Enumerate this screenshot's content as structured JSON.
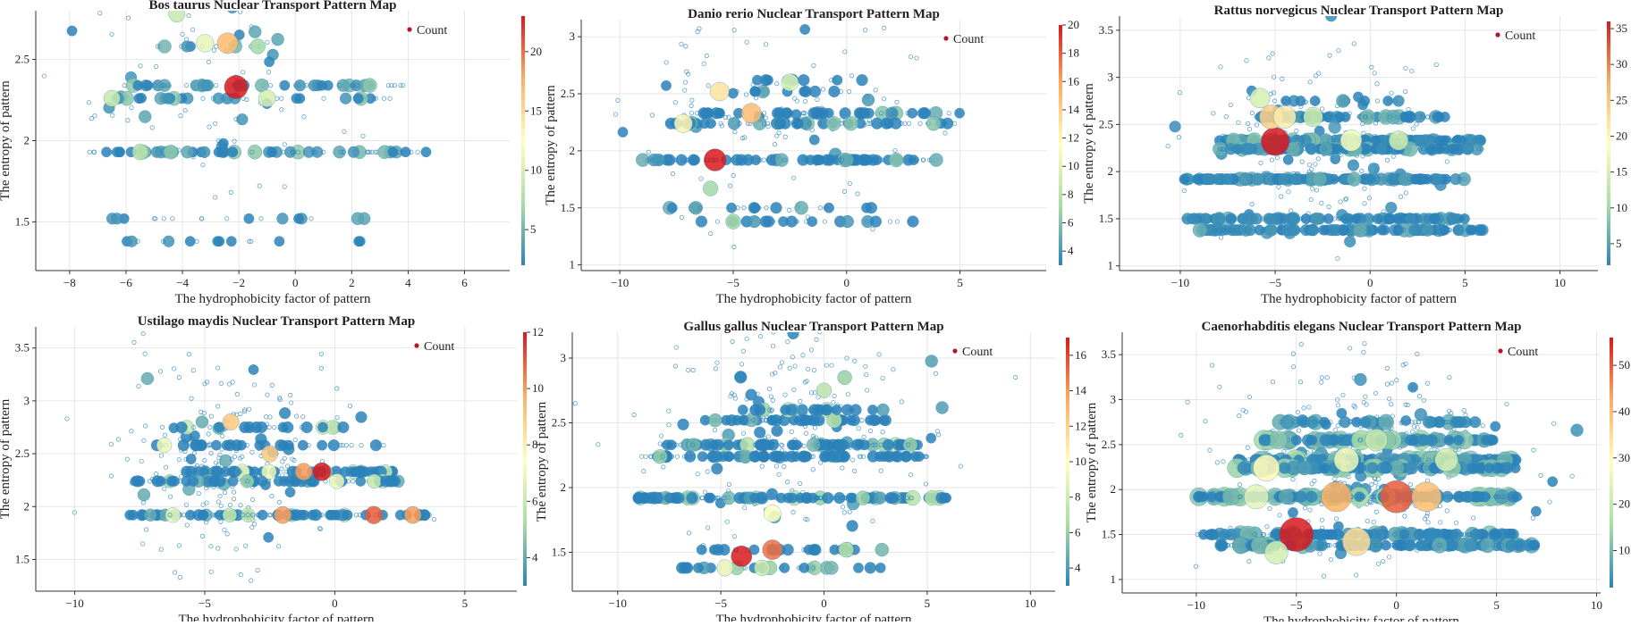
{
  "colors": {
    "scale": [
      "#2b83ba",
      "#abdda4",
      "#ffffbf",
      "#fdae61",
      "#d7191c"
    ],
    "grid": "#e6e6e6",
    "legend_marker": "#b2182b"
  },
  "chart_data": [
    {
      "type": "scatter",
      "title": "Bos taurus Nuclear Transport Pattern Map",
      "xlabel": "The hydrophobicity factor of pattern",
      "ylabel": "The entropy of pattern",
      "xlim": [
        -9.2,
        7.6
      ],
      "ylim": [
        1.2,
        2.8
      ],
      "xticks": [
        -8,
        -6,
        -4,
        -2,
        0,
        2,
        4,
        6
      ],
      "yticks": [
        1.5,
        2,
        2.5
      ],
      "cbar": {
        "min": 2,
        "max": 23,
        "ticks": [
          5,
          10,
          15,
          20
        ]
      },
      "legend": {
        "label": "Count",
        "position": "top-right"
      },
      "grid": true,
      "rows": [
        {
          "y": 2.34,
          "xmin": -7,
          "xmax": 4,
          "n": 55,
          "cmax": 6
        },
        {
          "y": 2.26,
          "xmin": -6.5,
          "xmax": 3.5,
          "n": 45,
          "cmax": 6
        },
        {
          "y": 1.93,
          "xmin": -7.5,
          "xmax": 5,
          "n": 70,
          "cmax": 6
        },
        {
          "y": 1.52,
          "xmin": -7,
          "xmax": 4,
          "n": 18,
          "cmax": 4
        },
        {
          "y": 1.38,
          "xmin": -7,
          "xmax": 2.5,
          "n": 15,
          "cmax": 4
        },
        {
          "y": 2.58,
          "xmin": -5,
          "xmax": -1,
          "n": 12,
          "cmax": 8
        }
      ],
      "cloud": {
        "xc": -3,
        "xs": 2.6,
        "yc": 2.35,
        "ys": 0.35,
        "n": 80
      },
      "highlights": [
        {
          "x": -2.1,
          "y": 2.33,
          "count": 23
        },
        {
          "x": -2.4,
          "y": 2.6,
          "count": 17
        },
        {
          "x": -4.2,
          "y": 2.78,
          "count": 9
        },
        {
          "x": -3.2,
          "y": 2.6,
          "count": 11
        },
        {
          "x": -1,
          "y": 2.26,
          "count": 10
        },
        {
          "x": -6.5,
          "y": 2.26,
          "count": 9
        },
        {
          "x": -5.5,
          "y": 1.93,
          "count": 8
        }
      ]
    },
    {
      "type": "scatter",
      "title": "Danio rerio Nuclear Transport Pattern Map",
      "xlabel": "The hydrophobicity factor of pattern",
      "ylabel": "The entropy of pattern",
      "xlim": [
        -11.7,
        8.8
      ],
      "ylim": [
        0.95,
        3.15
      ],
      "xticks": [
        -10,
        -5,
        0,
        5
      ],
      "yticks": [
        1,
        1.5,
        2,
        2.5,
        3
      ],
      "cbar": {
        "min": 3,
        "max": 20,
        "ticks": [
          4,
          6,
          8,
          10,
          12,
          14,
          16,
          18,
          20
        ]
      },
      "legend": {
        "label": "Count",
        "position": "top-right"
      },
      "grid": true,
      "rows": [
        {
          "y": 2.33,
          "xmin": -7,
          "xmax": 5,
          "n": 60,
          "cmax": 6
        },
        {
          "y": 2.24,
          "xmin": -8,
          "xmax": 5,
          "n": 70,
          "cmax": 6
        },
        {
          "y": 1.92,
          "xmin": -9,
          "xmax": 4,
          "n": 110,
          "cmax": 6
        },
        {
          "y": 1.5,
          "xmin": -8,
          "xmax": 3,
          "n": 22,
          "cmax": 5
        },
        {
          "y": 1.38,
          "xmin": -7,
          "xmax": 3,
          "n": 25,
          "cmax": 5
        },
        {
          "y": 2.52,
          "xmin": -5,
          "xmax": 1,
          "n": 15,
          "cmax": 5
        },
        {
          "y": 2.62,
          "xmin": -5,
          "xmax": 1,
          "n": 12,
          "cmax": 4
        }
      ],
      "cloud": {
        "xc": -2.5,
        "xs": 3,
        "yc": 2.3,
        "ys": 0.45,
        "n": 110
      },
      "highlights": [
        {
          "x": -5.8,
          "y": 1.92,
          "count": 20
        },
        {
          "x": -4.2,
          "y": 2.33,
          "count": 15
        },
        {
          "x": -5.6,
          "y": 2.52,
          "count": 13
        },
        {
          "x": -7.2,
          "y": 2.24,
          "count": 12
        },
        {
          "x": -2.5,
          "y": 2.6,
          "count": 10
        },
        {
          "x": -6,
          "y": 1.67,
          "count": 7
        },
        {
          "x": -5,
          "y": 1.38,
          "count": 7
        }
      ]
    },
    {
      "type": "scatter",
      "title": "Rattus norvegicus Nuclear Transport Pattern Map",
      "xlabel": "The hydrophobicity factor of pattern",
      "ylabel": "The entropy of pattern",
      "xlim": [
        -13.2,
        12
      ],
      "ylim": [
        0.95,
        3.65
      ],
      "xticks": [
        -10,
        -5,
        0,
        5,
        10
      ],
      "yticks": [
        1,
        1.5,
        2,
        2.5,
        3,
        3.5
      ],
      "cbar": {
        "min": 2,
        "max": 36,
        "ticks": [
          5,
          10,
          15,
          20,
          25,
          30,
          35
        ]
      },
      "legend": {
        "label": "Count",
        "position": "top-right"
      },
      "grid": true,
      "rows": [
        {
          "y": 2.33,
          "xmin": -8,
          "xmax": 6,
          "n": 200,
          "cmax": 8
        },
        {
          "y": 2.24,
          "xmin": -8,
          "xmax": 6,
          "n": 150,
          "cmax": 7
        },
        {
          "y": 1.92,
          "xmin": -10,
          "xmax": 5,
          "n": 220,
          "cmax": 6
        },
        {
          "y": 1.5,
          "xmin": -10,
          "xmax": 5,
          "n": 140,
          "cmax": 6
        },
        {
          "y": 1.38,
          "xmin": -9,
          "xmax": 6,
          "n": 160,
          "cmax": 6
        },
        {
          "y": 2.58,
          "xmin": -6,
          "xmax": 4,
          "n": 80,
          "cmax": 7
        },
        {
          "y": 2.75,
          "xmin": -6,
          "xmax": 2,
          "n": 20,
          "cmax": 5
        }
      ],
      "cloud": {
        "xc": -3,
        "xs": 3,
        "yc": 2.35,
        "ys": 0.5,
        "n": 180
      },
      "highlights": [
        {
          "x": -5,
          "y": 2.32,
          "count": 36
        },
        {
          "x": -5.2,
          "y": 2.58,
          "count": 24
        },
        {
          "x": -4.5,
          "y": 2.58,
          "count": 21
        },
        {
          "x": -3,
          "y": 2.58,
          "count": 14
        },
        {
          "x": -1,
          "y": 2.33,
          "count": 18
        },
        {
          "x": -5.8,
          "y": 2.78,
          "count": 15
        },
        {
          "x": 1.5,
          "y": 2.33,
          "count": 14
        }
      ]
    },
    {
      "type": "scatter",
      "title": "Ustilago maydis Nuclear Transport Pattern Map",
      "xlabel": "The hydrophobicity factor of pattern",
      "ylabel": "The entropy of pattern",
      "xlim": [
        -11.5,
        7
      ],
      "ylim": [
        1.2,
        3.7
      ],
      "xticks": [
        -10,
        -5,
        0,
        5
      ],
      "yticks": [
        1.5,
        2,
        2.5,
        3,
        3.5
      ],
      "cbar": {
        "min": 3,
        "max": 12,
        "ticks": [
          4,
          6,
          8,
          10,
          12
        ]
      },
      "legend": {
        "label": "Count",
        "position": "top-right"
      },
      "grid": true,
      "rows": [
        {
          "y": 2.33,
          "xmin": -6,
          "xmax": 2.5,
          "n": 90,
          "cmax": 7
        },
        {
          "y": 2.24,
          "xmin": -8,
          "xmax": 2.5,
          "n": 80,
          "cmax": 7
        },
        {
          "y": 1.92,
          "xmin": -8,
          "xmax": 4,
          "n": 100,
          "cmax": 7
        },
        {
          "y": 2.58,
          "xmin": -7,
          "xmax": 2,
          "n": 40,
          "cmax": 7
        },
        {
          "y": 2.75,
          "xmin": -6,
          "xmax": 1,
          "n": 25,
          "cmax": 6
        }
      ],
      "cloud": {
        "xc": -4,
        "xs": 2.2,
        "yc": 2.5,
        "ys": 0.55,
        "n": 220
      },
      "highlights": [
        {
          "x": -0.5,
          "y": 2.33,
          "count": 12
        },
        {
          "x": 1.5,
          "y": 1.92,
          "count": 11
        },
        {
          "x": -1.2,
          "y": 2.33,
          "count": 10
        },
        {
          "x": -2,
          "y": 1.92,
          "count": 10
        },
        {
          "x": 3,
          "y": 1.92,
          "count": 10
        },
        {
          "x": -4,
          "y": 2.8,
          "count": 9
        },
        {
          "x": -2.5,
          "y": 2.5,
          "count": 9
        }
      ]
    },
    {
      "type": "scatter",
      "title": "Gallus gallus Nuclear Transport Pattern Map",
      "xlabel": "The hydrophobicity factor of pattern",
      "ylabel": "The entropy of pattern",
      "xlim": [
        -12.2,
        11.2
      ],
      "ylim": [
        1.2,
        3.2
      ],
      "xticks": [
        -10,
        -5,
        0,
        5,
        10
      ],
      "yticks": [
        1.5,
        2,
        2.5,
        3
      ],
      "cbar": {
        "min": 3,
        "max": 17,
        "ticks": [
          4,
          6,
          8,
          10,
          12,
          14,
          16
        ]
      },
      "legend": {
        "label": "Count",
        "position": "top-right"
      },
      "grid": true,
      "rows": [
        {
          "y": 2.33,
          "xmin": -8,
          "xmax": 5,
          "n": 120,
          "cmax": 7
        },
        {
          "y": 2.24,
          "xmin": -9,
          "xmax": 5,
          "n": 130,
          "cmax": 6
        },
        {
          "y": 1.92,
          "xmin": -9,
          "xmax": 6,
          "n": 160,
          "cmax": 7
        },
        {
          "y": 2.52,
          "xmin": -6,
          "xmax": 3,
          "n": 70,
          "cmax": 7
        },
        {
          "y": 2.6,
          "xmin": -4,
          "xmax": 3,
          "n": 40,
          "cmax": 7
        },
        {
          "y": 1.52,
          "xmin": -6,
          "xmax": 3,
          "n": 35,
          "cmax": 7
        },
        {
          "y": 1.38,
          "xmin": -7,
          "xmax": 3,
          "n": 40,
          "cmax": 6
        }
      ],
      "cloud": {
        "xc": -1.5,
        "xs": 3.5,
        "yc": 2.45,
        "ys": 0.4,
        "n": 200
      },
      "highlights": [
        {
          "x": -4,
          "y": 1.47,
          "count": 17
        },
        {
          "x": -2.5,
          "y": 1.52,
          "count": 15
        },
        {
          "x": -4.8,
          "y": 1.38,
          "count": 9
        },
        {
          "x": -3,
          "y": 1.38,
          "count": 8
        },
        {
          "x": 0,
          "y": 2.75,
          "count": 7
        },
        {
          "x": 1,
          "y": 2.85,
          "count": 6
        },
        {
          "x": -2.5,
          "y": 1.8,
          "count": 10
        }
      ]
    },
    {
      "type": "scatter",
      "title": "Caenorhabditis elegans Nuclear Transport Pattern Map",
      "xlabel": "The hydrophobicity factor of pattern",
      "ylabel": "The entropy of pattern",
      "xlim": [
        -13.7,
        10.2
      ],
      "ylim": [
        0.85,
        3.75
      ],
      "xticks": [
        -10,
        -5,
        0,
        5,
        10
      ],
      "yticks": [
        1,
        1.5,
        2,
        2.5,
        3,
        3.5
      ],
      "cbar": {
        "min": 2,
        "max": 56,
        "ticks": [
          10,
          20,
          30,
          40,
          50
        ]
      },
      "legend": {
        "label": "Count",
        "position": "top-right"
      },
      "grid": true,
      "rows": [
        {
          "y": 2.55,
          "xmin": -7,
          "xmax": 5,
          "n": 160,
          "cmax": 15
        },
        {
          "y": 2.33,
          "xmin": -8,
          "xmax": 6,
          "n": 220,
          "cmax": 16
        },
        {
          "y": 2.24,
          "xmin": -8,
          "xmax": 6,
          "n": 200,
          "cmax": 14
        },
        {
          "y": 1.92,
          "xmin": -10,
          "xmax": 6,
          "n": 260,
          "cmax": 15
        },
        {
          "y": 1.5,
          "xmin": -10,
          "xmax": 6,
          "n": 200,
          "cmax": 12
        },
        {
          "y": 1.38,
          "xmin": -9,
          "xmax": 7,
          "n": 180,
          "cmax": 10
        },
        {
          "y": 2.75,
          "xmin": -6,
          "xmax": 4,
          "n": 60,
          "cmax": 10
        }
      ],
      "cloud": {
        "xc": -1.5,
        "xs": 3.6,
        "yc": 2.3,
        "ys": 0.55,
        "n": 320
      },
      "highlights": [
        {
          "x": -5,
          "y": 1.5,
          "count": 56
        },
        {
          "x": 0,
          "y": 1.92,
          "count": 50
        },
        {
          "x": 1.5,
          "y": 1.92,
          "count": 40
        },
        {
          "x": -3,
          "y": 1.92,
          "count": 42
        },
        {
          "x": -2,
          "y": 1.42,
          "count": 35
        },
        {
          "x": -6.5,
          "y": 2.24,
          "count": 30
        },
        {
          "x": -2.5,
          "y": 2.33,
          "count": 26
        },
        {
          "x": -7,
          "y": 1.92,
          "count": 25
        },
        {
          "x": -6,
          "y": 1.3,
          "count": 22
        },
        {
          "x": -1,
          "y": 2.55,
          "count": 20
        },
        {
          "x": 2.5,
          "y": 2.33,
          "count": 22
        }
      ]
    }
  ]
}
